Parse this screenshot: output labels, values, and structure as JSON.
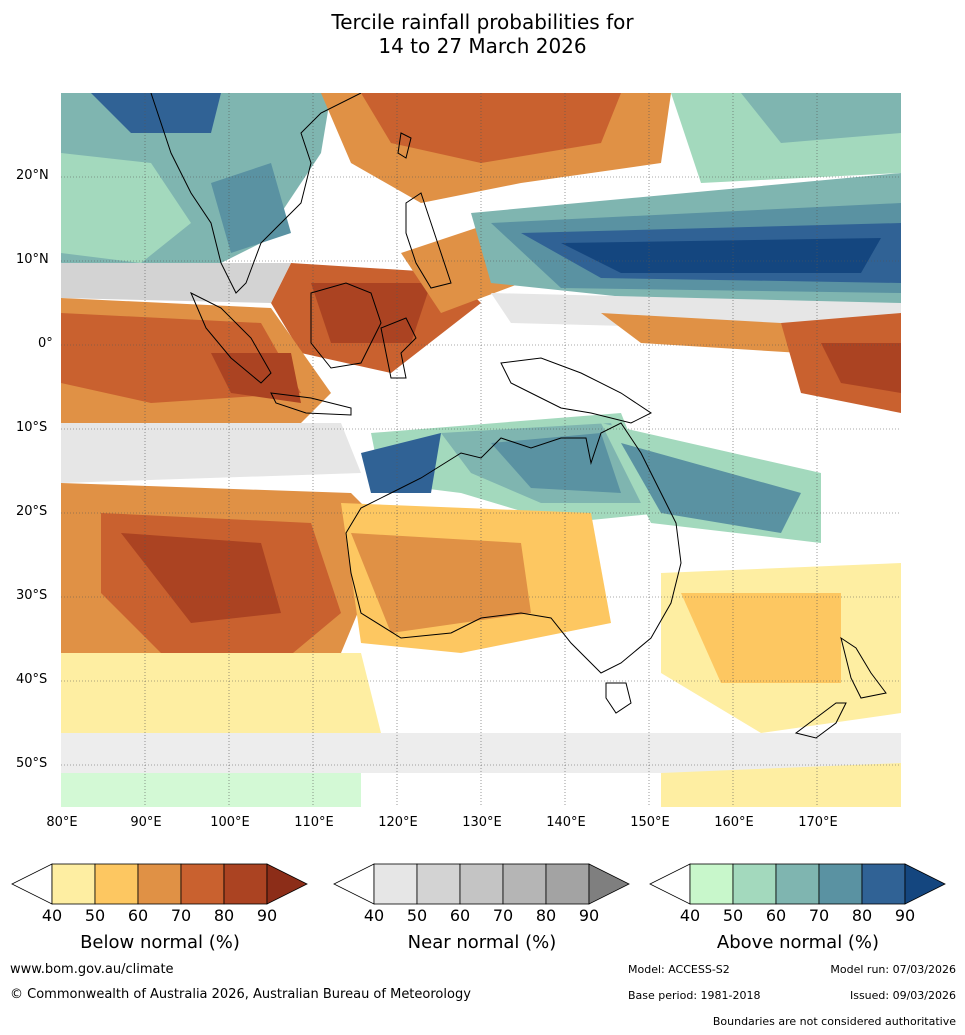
{
  "title_line1": "Tercile rainfall probabilities for",
  "title_line2": "14 to 27 March 2026",
  "lat_labels": [
    "20°N",
    "10°N",
    "0°",
    "10°S",
    "20°S",
    "30°S",
    "40°S",
    "50°S"
  ],
  "lon_labels": [
    "80°E",
    "90°E",
    "100°E",
    "110°E",
    "120°E",
    "130°E",
    "140°E",
    "150°E",
    "160°E",
    "170°E"
  ],
  "colorbars": [
    {
      "name": "below",
      "title": "Below normal (%)",
      "ticks": [
        "40",
        "50",
        "60",
        "70",
        "80",
        "90"
      ],
      "colors": [
        "#ffffff",
        "#feeea2",
        "#fdc761",
        "#e09145",
        "#c9612f",
        "#ab4322",
        "#8c2d18"
      ]
    },
    {
      "name": "near",
      "title": "Near normal (%)",
      "ticks": [
        "40",
        "50",
        "60",
        "70",
        "80",
        "90"
      ],
      "colors": [
        "#ffffff",
        "#e6e6e6",
        "#d3d3d3",
        "#c4c4c4",
        "#b5b5b5",
        "#a3a3a3",
        "#7f7f7f"
      ]
    },
    {
      "name": "above",
      "title": "Above normal (%)",
      "ticks": [
        "40",
        "50",
        "60",
        "70",
        "80",
        "90"
      ],
      "colors": [
        "#ffffff",
        "#c8f7cb",
        "#a3d9bd",
        "#7fb5b0",
        "#5a92a2",
        "#306295",
        "#14467f"
      ]
    }
  ],
  "footer": {
    "website": "www.bom.gov.au/climate",
    "copyright": "© Commonwealth of Australia 2026, Australian Bureau of Meteorology",
    "model": "Model: ACCESS-S2",
    "model_run": "Model run: 07/03/2026",
    "base_period": "Base period: 1981-2018",
    "issued": "Issued: 09/03/2026",
    "disclaimer": "Boundaries are not considered authoritative"
  }
}
